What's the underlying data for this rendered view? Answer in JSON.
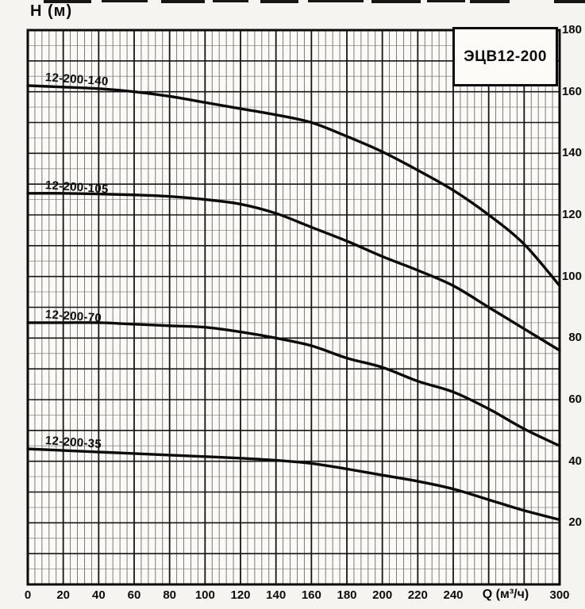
{
  "chart_data": {
    "type": "line",
    "title": "ЭЦВ12-200",
    "xlabel": "Q (м³/ч)",
    "ylabel": "H (м)",
    "xlim": [
      0,
      300
    ],
    "ylim": [
      0,
      180
    ],
    "x_major_step": 20,
    "x_minor_step": 4,
    "y_major_step": 10,
    "y_minor_step": 5,
    "grid": "on",
    "legend_position": "labels-on-curves",
    "x_tick_labels": [
      0,
      20,
      40,
      60,
      80,
      100,
      120,
      140,
      160,
      180,
      200,
      220,
      240,
      300
    ],
    "y_tick_labels": [
      20,
      40,
      60,
      80,
      100,
      120,
      140,
      160,
      180
    ],
    "x": [
      0,
      20,
      40,
      60,
      80,
      100,
      120,
      140,
      160,
      180,
      200,
      220,
      240,
      260,
      280,
      300
    ],
    "series": [
      {
        "name": "12-200-140",
        "values": [
          162,
          161.5,
          161,
          160,
          158.5,
          156.5,
          154.5,
          152.5,
          150,
          145.5,
          140.5,
          134.5,
          128,
          120,
          110.5,
          97
        ]
      },
      {
        "name": "12-200-105",
        "values": [
          127,
          127,
          126.8,
          126.5,
          126,
          125,
          123.5,
          120.5,
          116,
          111.5,
          106.5,
          102,
          97,
          90,
          83,
          76
        ]
      },
      {
        "name": "12-200-70",
        "values": [
          85,
          85,
          85,
          84.5,
          84,
          83.5,
          82,
          80,
          77.5,
          73.5,
          70.5,
          66,
          62.5,
          57,
          50.5,
          45
        ]
      },
      {
        "name": "12-200-35",
        "values": [
          44,
          43.5,
          43,
          42.5,
          42,
          41.5,
          41,
          40.3,
          39.3,
          37.5,
          35.5,
          33.5,
          31,
          27.5,
          24,
          21
        ]
      }
    ],
    "colors": {
      "curve": "#0a0a0a",
      "grid_major": "#151515",
      "grid_minor_v": "#6e6e6e",
      "grid_minor_h": "#9e9e9e",
      "plot_background": "#fbfaf7",
      "border": "#0a0a0a"
    }
  }
}
